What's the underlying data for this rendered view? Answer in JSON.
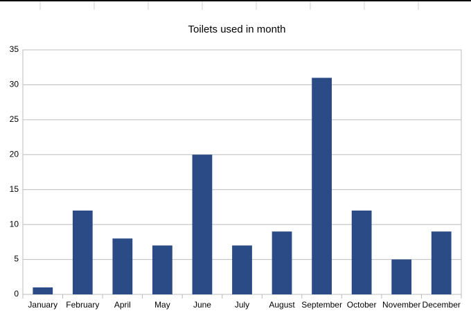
{
  "chart_data": {
    "type": "bar",
    "title": "Toilets used in month",
    "categories": [
      "January",
      "February",
      "April",
      "May",
      "June",
      "July",
      "August",
      "September",
      "October",
      "November",
      "December"
    ],
    "values": [
      1,
      12,
      8,
      7,
      20,
      7,
      9,
      31,
      12,
      5,
      9
    ],
    "color": "#2a4b86",
    "ylim": [
      0,
      35
    ],
    "yticks": [
      0,
      5,
      10,
      15,
      20,
      25,
      30,
      35
    ],
    "grid": true
  }
}
